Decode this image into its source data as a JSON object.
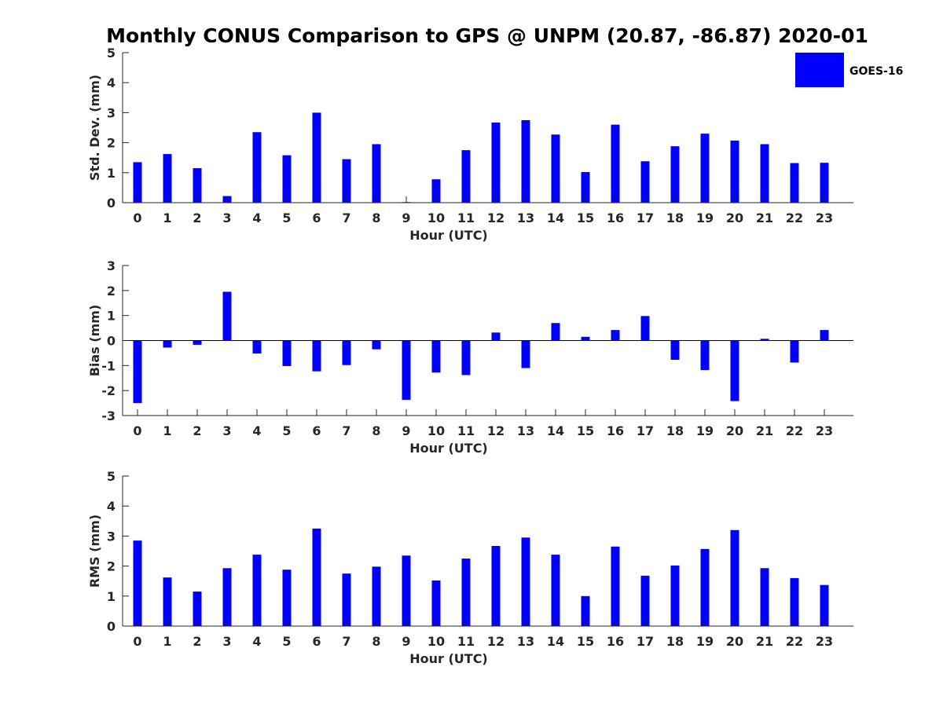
{
  "chart_data": [
    {
      "type": "bar",
      "title": "Monthly CONUS Comparison to GPS @ UNPM (20.87, -86.87) 2020-01",
      "xlabel": "Hour (UTC)",
      "ylabel": "Std. Dev. (mm)",
      "ylim": [
        0,
        5
      ],
      "yticks": [
        0,
        1,
        2,
        3,
        4,
        5
      ],
      "categories": [
        "0",
        "1",
        "2",
        "3",
        "4",
        "5",
        "6",
        "7",
        "8",
        "9",
        "10",
        "11",
        "12",
        "13",
        "14",
        "15",
        "16",
        "17",
        "18",
        "19",
        "20",
        "21",
        "22",
        "23"
      ],
      "series": [
        {
          "name": "GOES-16",
          "values": [
            1.35,
            1.62,
            1.15,
            0.22,
            2.35,
            1.58,
            3.0,
            1.45,
            1.95,
            0.02,
            0.78,
            1.75,
            2.67,
            2.75,
            2.27,
            1.02,
            2.6,
            1.38,
            1.88,
            2.3,
            2.07,
            1.95,
            1.32,
            1.33
          ]
        }
      ],
      "legend": {
        "position": "top-right",
        "entries": [
          "GOES-16"
        ]
      },
      "bar_color": "#0000ff"
    },
    {
      "type": "bar",
      "title": "",
      "xlabel": "Hour (UTC)",
      "ylabel": "Bias (mm)",
      "ylim": [
        -3,
        3
      ],
      "yticks": [
        -3,
        -2,
        -1,
        0,
        1,
        2,
        3
      ],
      "categories": [
        "0",
        "1",
        "2",
        "3",
        "4",
        "5",
        "6",
        "7",
        "8",
        "9",
        "10",
        "11",
        "12",
        "13",
        "14",
        "15",
        "16",
        "17",
        "18",
        "19",
        "20",
        "21",
        "22",
        "23"
      ],
      "series": [
        {
          "name": "GOES-16",
          "values": [
            -2.5,
            -0.28,
            -0.17,
            1.95,
            -0.52,
            -1.02,
            -1.23,
            -0.98,
            -0.35,
            -2.37,
            -1.28,
            -1.38,
            0.32,
            -1.1,
            0.7,
            0.15,
            0.42,
            0.98,
            -0.77,
            -1.18,
            -2.42,
            0.07,
            -0.88,
            0.42
          ]
        }
      ],
      "bar_color": "#0000ff"
    },
    {
      "type": "bar",
      "title": "",
      "xlabel": "Hour (UTC)",
      "ylabel": "RMS (mm)",
      "ylim": [
        0,
        5
      ],
      "yticks": [
        0,
        1,
        2,
        3,
        4,
        5
      ],
      "categories": [
        "0",
        "1",
        "2",
        "3",
        "4",
        "5",
        "6",
        "7",
        "8",
        "9",
        "10",
        "11",
        "12",
        "13",
        "14",
        "15",
        "16",
        "17",
        "18",
        "19",
        "20",
        "21",
        "22",
        "23"
      ],
      "series": [
        {
          "name": "GOES-16",
          "values": [
            2.85,
            1.62,
            1.15,
            1.93,
            2.38,
            1.88,
            3.25,
            1.75,
            1.98,
            2.35,
            1.52,
            2.25,
            2.67,
            2.95,
            2.38,
            1.0,
            2.65,
            1.68,
            2.02,
            2.57,
            3.2,
            1.93,
            1.6,
            1.37
          ]
        }
      ],
      "bar_color": "#0000ff"
    }
  ]
}
